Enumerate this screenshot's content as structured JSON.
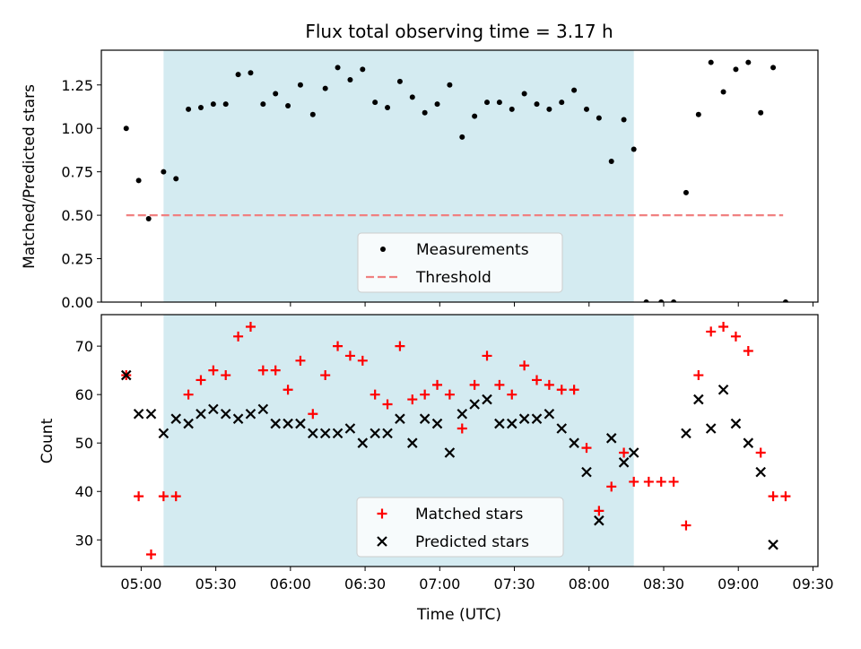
{
  "chart_data": [
    {
      "type": "scatter",
      "title": "Flux total observing time = 3.17 h",
      "ylabel": "Matched/Predicted stars",
      "xlim": [
        "04:44",
        "09:32"
      ],
      "ylim": [
        0,
        1.45
      ],
      "yticks": [
        0,
        0.25,
        0.5,
        0.75,
        1.0,
        1.25
      ],
      "ytick_labels": [
        "0.00",
        "0.25",
        "0.50",
        "0.75",
        "1.00",
        "1.25"
      ],
      "shaded_span": {
        "start": "05:09",
        "end": "08:18",
        "color": "#d4ebf1"
      },
      "legend": {
        "position": "lower-center",
        "entries": [
          "Measurements",
          "Threshold"
        ]
      },
      "series": [
        {
          "name": "Measurements",
          "marker": "dot",
          "color": "#000000",
          "x": [
            "04:54",
            "04:59",
            "05:03",
            "05:09",
            "05:14",
            "05:19",
            "05:24",
            "05:29",
            "05:34",
            "05:39",
            "05:44",
            "05:49",
            "05:54",
            "05:59",
            "06:04",
            "06:09",
            "06:14",
            "06:19",
            "06:24",
            "06:29",
            "06:34",
            "06:39",
            "06:44",
            "06:49",
            "06:54",
            "06:59",
            "07:04",
            "07:09",
            "07:14",
            "07:19",
            "07:24",
            "07:29",
            "07:34",
            "07:39",
            "07:44",
            "07:49",
            "07:54",
            "07:59",
            "08:04",
            "08:09",
            "08:14",
            "08:18",
            "08:23",
            "08:29",
            "08:34",
            "08:39",
            "08:44",
            "08:49",
            "08:54",
            "08:59",
            "09:04",
            "09:09",
            "09:14",
            "09:19"
          ],
          "y": [
            1.0,
            0.7,
            0.48,
            0.75,
            0.71,
            1.11,
            1.12,
            1.14,
            1.14,
            1.31,
            1.32,
            1.14,
            1.2,
            1.13,
            1.25,
            1.08,
            1.23,
            1.35,
            1.28,
            1.34,
            1.15,
            1.12,
            1.27,
            1.18,
            1.09,
            1.14,
            1.25,
            0.95,
            1.07,
            1.15,
            1.15,
            1.11,
            1.2,
            1.14,
            1.11,
            1.15,
            1.22,
            1.11,
            1.06,
            0.81,
            1.05,
            0.88,
            0.0,
            0.0,
            0.0,
            0.63,
            1.08,
            1.38,
            1.21,
            1.34,
            1.38,
            1.09,
            1.35,
            0.0
          ]
        },
        {
          "name": "Threshold",
          "style": "dashed",
          "color": "#f08080",
          "x": [
            "04:54",
            "09:18"
          ],
          "y": [
            0.5,
            0.5
          ]
        }
      ]
    },
    {
      "type": "scatter",
      "xlabel": "Time (UTC)",
      "ylabel": "Count",
      "xlim": [
        "04:44",
        "09:32"
      ],
      "ylim": [
        24.5,
        76.5
      ],
      "yticks": [
        30,
        40,
        50,
        60,
        70
      ],
      "xticks": [
        "05:00",
        "05:30",
        "06:00",
        "06:30",
        "07:00",
        "07:30",
        "08:00",
        "08:30",
        "09:00",
        "09:30"
      ],
      "shaded_span": {
        "start": "05:09",
        "end": "08:18",
        "color": "#d4ebf1"
      },
      "legend": {
        "position": "lower-center",
        "entries": [
          "Matched stars",
          "Predicted stars"
        ]
      },
      "series": [
        {
          "name": "Matched stars",
          "marker": "plus",
          "color": "#ff0000",
          "x": [
            "04:54",
            "04:59",
            "05:04",
            "05:09",
            "05:14",
            "05:19",
            "05:24",
            "05:29",
            "05:34",
            "05:39",
            "05:44",
            "05:49",
            "05:54",
            "05:59",
            "06:04",
            "06:09",
            "06:14",
            "06:19",
            "06:24",
            "06:29",
            "06:34",
            "06:39",
            "06:44",
            "06:49",
            "06:54",
            "06:59",
            "07:04",
            "07:09",
            "07:14",
            "07:19",
            "07:24",
            "07:29",
            "07:34",
            "07:39",
            "07:44",
            "07:49",
            "07:54",
            "07:59",
            "08:04",
            "08:09",
            "08:14",
            "08:18",
            "08:24",
            "08:29",
            "08:34",
            "08:39",
            "08:44",
            "08:49",
            "08:54",
            "08:59",
            "09:04",
            "09:09",
            "09:14",
            "09:19"
          ],
          "y": [
            64,
            39,
            27,
            39,
            39,
            60,
            63,
            65,
            64,
            72,
            74,
            65,
            65,
            61,
            67,
            56,
            64,
            70,
            68,
            67,
            60,
            58,
            70,
            59,
            60,
            62,
            60,
            53,
            62,
            68,
            62,
            60,
            66,
            63,
            62,
            61,
            61,
            49,
            36,
            41,
            48,
            42,
            42,
            42,
            42,
            33,
            64,
            73,
            74,
            72,
            69,
            48,
            39,
            39
          ]
        },
        {
          "name": "Predicted stars",
          "marker": "x",
          "color": "#000000",
          "x": [
            "04:54",
            "04:59",
            "05:04",
            "05:09",
            "05:14",
            "05:19",
            "05:24",
            "05:29",
            "05:34",
            "05:39",
            "05:44",
            "05:49",
            "05:54",
            "05:59",
            "06:04",
            "06:09",
            "06:14",
            "06:19",
            "06:24",
            "06:29",
            "06:34",
            "06:39",
            "06:44",
            "06:49",
            "06:54",
            "06:59",
            "07:04",
            "07:09",
            "07:14",
            "07:19",
            "07:24",
            "07:29",
            "07:34",
            "07:39",
            "07:44",
            "07:49",
            "07:54",
            "07:59",
            "08:04",
            "08:09",
            "08:14",
            "08:18",
            "08:39",
            "08:44",
            "08:49",
            "08:54",
            "08:59",
            "09:04",
            "09:09",
            "09:14"
          ],
          "y": [
            64,
            56,
            56,
            52,
            55,
            54,
            56,
            57,
            56,
            55,
            56,
            57,
            54,
            54,
            54,
            52,
            52,
            52,
            53,
            50,
            52,
            52,
            55,
            50,
            55,
            54,
            48,
            56,
            58,
            59,
            54,
            54,
            55,
            55,
            56,
            53,
            50,
            44,
            34,
            51,
            46,
            48,
            52,
            59,
            53,
            61,
            54,
            50,
            44,
            29
          ]
        }
      ]
    }
  ]
}
